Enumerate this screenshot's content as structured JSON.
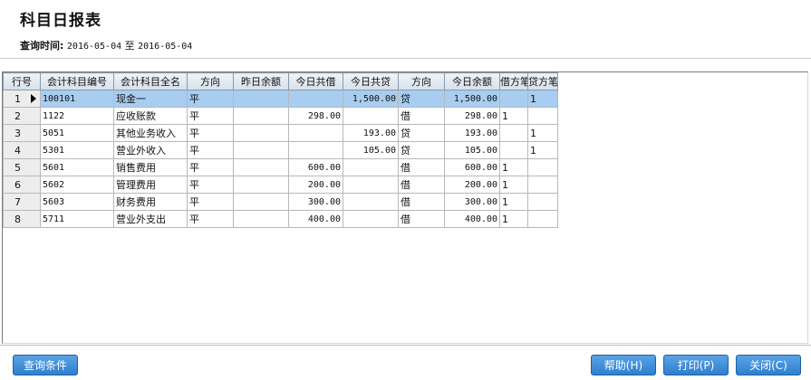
{
  "header": {
    "title": "科目日报表",
    "query_label": "查询时间:",
    "date_from": "2016-05-04",
    "date_sep": "至",
    "date_to": "2016-05-04"
  },
  "grid": {
    "columns": [
      "行号",
      "会计科目编号",
      "会计科目全名",
      "方向",
      "昨日余额",
      "今日共借",
      "今日共贷",
      "方向",
      "今日余额",
      "借方笔数",
      "贷方笔数"
    ],
    "rows": [
      {
        "n": "1",
        "code": "100101",
        "name": "现金一",
        "dir": "平",
        "yesterday": "",
        "debit": "",
        "credit": "1,500.00",
        "dir2": "贷",
        "balance": "1,500.00",
        "dcount": "",
        "ccount": "1"
      },
      {
        "n": "2",
        "code": "1122",
        "name": "应收账款",
        "dir": "平",
        "yesterday": "",
        "debit": "298.00",
        "credit": "",
        "dir2": "借",
        "balance": "298.00",
        "dcount": "1",
        "ccount": ""
      },
      {
        "n": "3",
        "code": "5051",
        "name": "其他业务收入",
        "dir": "平",
        "yesterday": "",
        "debit": "",
        "credit": "193.00",
        "dir2": "贷",
        "balance": "193.00",
        "dcount": "",
        "ccount": "1"
      },
      {
        "n": "4",
        "code": "5301",
        "name": "营业外收入",
        "dir": "平",
        "yesterday": "",
        "debit": "",
        "credit": "105.00",
        "dir2": "贷",
        "balance": "105.00",
        "dcount": "",
        "ccount": "1"
      },
      {
        "n": "5",
        "code": "5601",
        "name": "销售费用",
        "dir": "平",
        "yesterday": "",
        "debit": "600.00",
        "credit": "",
        "dir2": "借",
        "balance": "600.00",
        "dcount": "1",
        "ccount": ""
      },
      {
        "n": "6",
        "code": "5602",
        "name": "管理费用",
        "dir": "平",
        "yesterday": "",
        "debit": "200.00",
        "credit": "",
        "dir2": "借",
        "balance": "200.00",
        "dcount": "1",
        "ccount": ""
      },
      {
        "n": "7",
        "code": "5603",
        "name": "财务费用",
        "dir": "平",
        "yesterday": "",
        "debit": "300.00",
        "credit": "",
        "dir2": "借",
        "balance": "300.00",
        "dcount": "1",
        "ccount": ""
      },
      {
        "n": "8",
        "code": "5711",
        "name": "营业外支出",
        "dir": "平",
        "yesterday": "",
        "debit": "400.00",
        "credit": "",
        "dir2": "借",
        "balance": "400.00",
        "dcount": "1",
        "ccount": ""
      }
    ]
  },
  "buttons": {
    "query_cond": "查询条件",
    "help": "帮助(H)",
    "print": "打印(P)",
    "close": "关闭(C)"
  }
}
